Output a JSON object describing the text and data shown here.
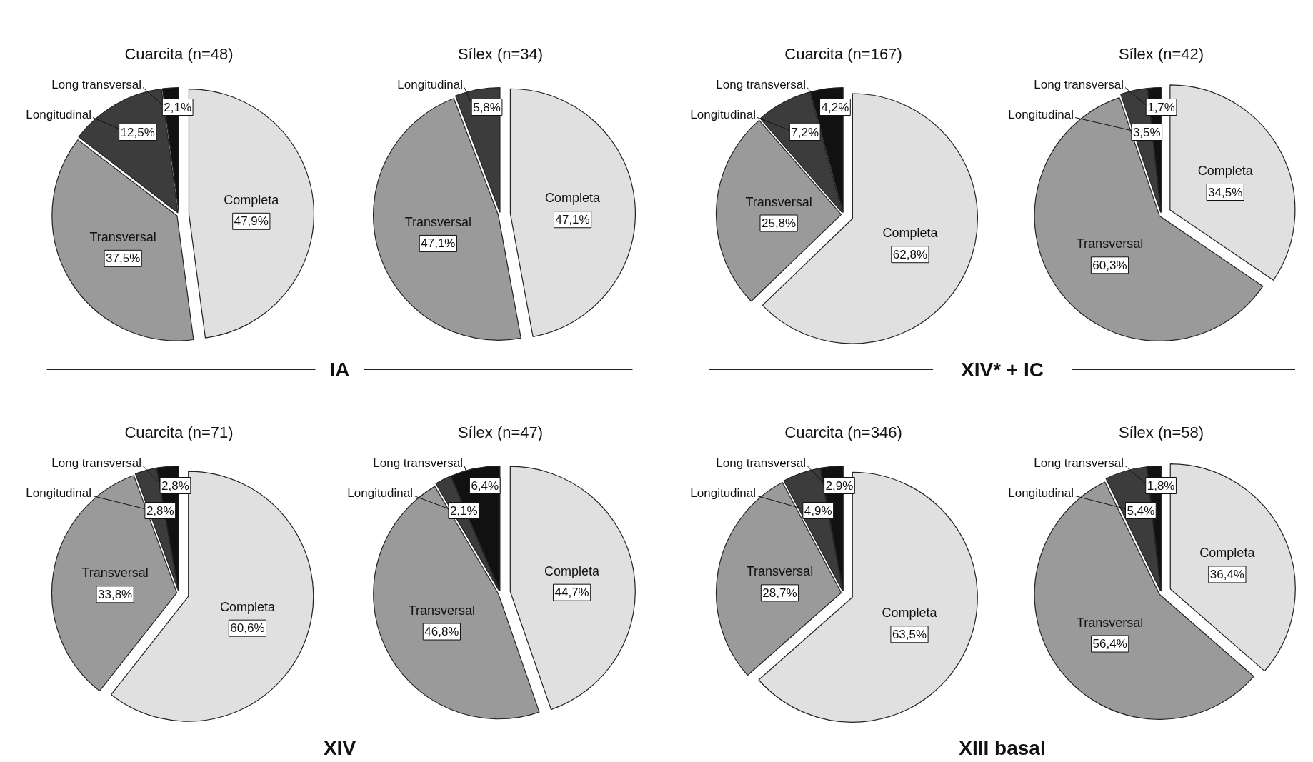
{
  "chart_data": [
    {
      "type": "pie",
      "title": "Cuarcita (n=48)",
      "annotations": [
        "IA"
      ],
      "categories": [
        "Completa",
        "Transversal",
        "Longitudinal",
        "Long transversal"
      ],
      "values": [
        47.9,
        37.5,
        12.5,
        2.1
      ],
      "value_labels": [
        "47,9%",
        "37,5%",
        "12,5%",
        "2,1%"
      ],
      "colors": [
        "#e0e0e0",
        "#9a9a9a",
        "#3c3c3c",
        "#111111"
      ]
    },
    {
      "type": "pie",
      "title": "Sílex (n=34)",
      "categories": [
        "Completa",
        "Transversal",
        "Longitudinal"
      ],
      "values": [
        47.1,
        47.1,
        5.8
      ],
      "value_labels": [
        "47,1%",
        "47,1%",
        "5,8%"
      ],
      "colors": [
        "#e0e0e0",
        "#9a9a9a",
        "#3c3c3c"
      ]
    },
    {
      "type": "pie",
      "title": "Cuarcita (n=167)",
      "annotations": [
        "XIV* + IC"
      ],
      "categories": [
        "Completa",
        "Transversal",
        "Longitudinal",
        "Long transversal"
      ],
      "values": [
        62.8,
        25.8,
        7.2,
        4.2
      ],
      "value_labels": [
        "62,8%",
        "25,8%",
        "7,2%",
        "4,2%"
      ],
      "colors": [
        "#e0e0e0",
        "#9a9a9a",
        "#3c3c3c",
        "#111111"
      ]
    },
    {
      "type": "pie",
      "title": "Sílex (n=42)",
      "categories": [
        "Completa",
        "Transversal",
        "Longitudinal",
        "Long transversal"
      ],
      "values": [
        34.5,
        60.3,
        3.5,
        1.7
      ],
      "value_labels": [
        "34,5%",
        "60,3%",
        "3,5%",
        "1,7%"
      ],
      "colors": [
        "#e0e0e0",
        "#9a9a9a",
        "#3c3c3c",
        "#111111"
      ]
    },
    {
      "type": "pie",
      "title": "Cuarcita (n=71)",
      "annotations": [
        "XIV"
      ],
      "categories": [
        "Completa",
        "Transversal",
        "Longitudinal",
        "Long transversal"
      ],
      "values": [
        60.6,
        33.8,
        2.8,
        2.8
      ],
      "value_labels": [
        "60,6%",
        "33,8%",
        "2,8%",
        "2,8%"
      ],
      "colors": [
        "#e0e0e0",
        "#9a9a9a",
        "#3c3c3c",
        "#111111"
      ]
    },
    {
      "type": "pie",
      "title": "Sílex (n=47)",
      "categories": [
        "Completa",
        "Transversal",
        "Longitudinal",
        "Long transversal"
      ],
      "values": [
        44.7,
        46.8,
        2.1,
        6.4
      ],
      "value_labels": [
        "44,7%",
        "46,8%",
        "2,1%",
        "6,4%"
      ],
      "colors": [
        "#e0e0e0",
        "#9a9a9a",
        "#3c3c3c",
        "#111111"
      ]
    },
    {
      "type": "pie",
      "title": "Cuarcita (n=346)",
      "annotations": [
        "XIII basal"
      ],
      "categories": [
        "Completa",
        "Transversal",
        "Longitudinal",
        "Long transversal"
      ],
      "values": [
        63.5,
        28.7,
        4.9,
        2.9
      ],
      "value_labels": [
        "63,5%",
        "28,7%",
        "4,9%",
        "2,9%"
      ],
      "colors": [
        "#e0e0e0",
        "#9a9a9a",
        "#3c3c3c",
        "#111111"
      ]
    },
    {
      "type": "pie",
      "title": "Sílex (n=58)",
      "categories": [
        "Completa",
        "Transversal",
        "Longitudinal",
        "Long transversal"
      ],
      "values": [
        36.4,
        56.4,
        5.4,
        1.8
      ],
      "value_labels": [
        "36,4%",
        "56,4%",
        "5,4%",
        "1,8%"
      ],
      "colors": [
        "#e0e0e0",
        "#9a9a9a",
        "#3c3c3c",
        "#111111"
      ]
    }
  ]
}
